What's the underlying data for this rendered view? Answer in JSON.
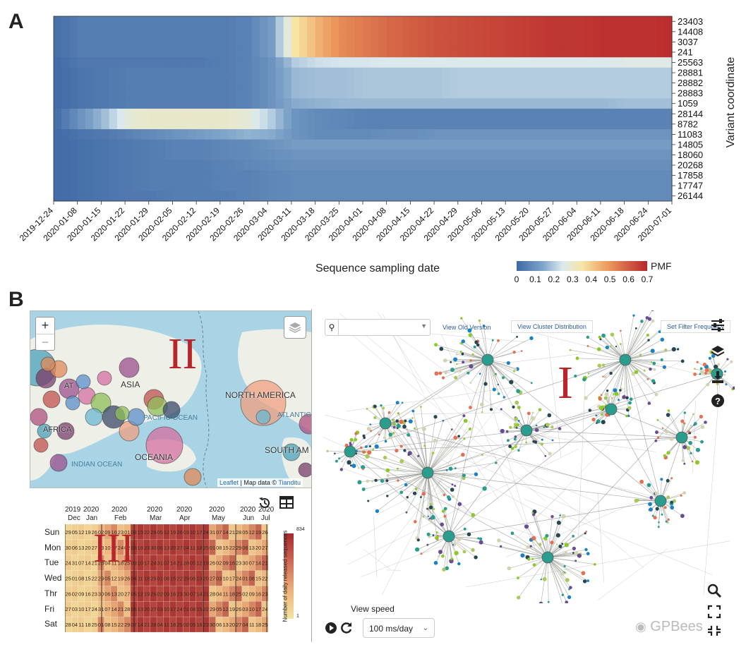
{
  "panel_a_label": "A",
  "panel_b_label": "B",
  "chart_data": {
    "type": "heatmap",
    "title": "",
    "xlabel": "Sequence sampling date",
    "ylabel": "Variant coordinate",
    "x_ticks": [
      "2019-12-24",
      "2020-01-08",
      "2020-01-15",
      "2020-01-22",
      "2020-01-29",
      "2020-02-05",
      "2020-02-12",
      "2020-02-19",
      "2020-02-26",
      "2020-03-04",
      "2020-03-11",
      "2020-03-18",
      "2020-03-25",
      "2020-04-01",
      "2020-04-08",
      "2020-04-15",
      "2020-04-22",
      "2020-04-29",
      "2020-05-06",
      "2020-05-13",
      "2020-05-20",
      "2020-05-27",
      "2020-06-04",
      "2020-06-11",
      "2020-06-18",
      "2020-06-24",
      "2020-07-01"
    ],
    "rows": [
      "23403",
      "14408",
      "3037",
      "241",
      "25563",
      "28881",
      "28882",
      "28883",
      "1059",
      "28144",
      "8782",
      "11083",
      "14805",
      "18060",
      "20268",
      "17858",
      "17747",
      "26144"
    ],
    "colorbar": {
      "label": "PMF",
      "range": [
        0,
        0.7
      ],
      "ticks": [
        "0",
        "0.1",
        "0.2",
        "0.3",
        "0.4",
        "0.5",
        "0.6",
        "0.7"
      ]
    },
    "approx_pmf_by_row_and_tick": [
      [
        0.02,
        0.05,
        0.05,
        0.05,
        0.05,
        0.05,
        0.05,
        0.05,
        0.06,
        0.12,
        0.35,
        0.45,
        0.52,
        0.55,
        0.58,
        0.6,
        0.62,
        0.63,
        0.64,
        0.65,
        0.66,
        0.67,
        0.67,
        0.68,
        0.68,
        0.68,
        0.69
      ],
      [
        0.02,
        0.05,
        0.05,
        0.05,
        0.05,
        0.05,
        0.05,
        0.05,
        0.06,
        0.12,
        0.35,
        0.45,
        0.52,
        0.55,
        0.58,
        0.6,
        0.62,
        0.63,
        0.64,
        0.65,
        0.66,
        0.67,
        0.67,
        0.68,
        0.68,
        0.68,
        0.69
      ],
      [
        0.02,
        0.05,
        0.05,
        0.05,
        0.05,
        0.05,
        0.05,
        0.05,
        0.06,
        0.12,
        0.35,
        0.45,
        0.52,
        0.55,
        0.58,
        0.6,
        0.62,
        0.63,
        0.64,
        0.65,
        0.66,
        0.67,
        0.67,
        0.68,
        0.68,
        0.68,
        0.69
      ],
      [
        0.02,
        0.05,
        0.05,
        0.05,
        0.05,
        0.05,
        0.05,
        0.05,
        0.06,
        0.12,
        0.35,
        0.45,
        0.52,
        0.55,
        0.58,
        0.6,
        0.62,
        0.63,
        0.64,
        0.65,
        0.66,
        0.67,
        0.67,
        0.68,
        0.68,
        0.68,
        0.69
      ],
      [
        0.01,
        0.04,
        0.04,
        0.04,
        0.04,
        0.04,
        0.04,
        0.05,
        0.06,
        0.1,
        0.2,
        0.23,
        0.24,
        0.24,
        0.25,
        0.25,
        0.25,
        0.25,
        0.25,
        0.25,
        0.25,
        0.25,
        0.25,
        0.25,
        0.26,
        0.26,
        0.26
      ],
      [
        0.01,
        0.03,
        0.04,
        0.05,
        0.05,
        0.05,
        0.05,
        0.05,
        0.06,
        0.1,
        0.17,
        0.18,
        0.18,
        0.19,
        0.19,
        0.19,
        0.19,
        0.2,
        0.2,
        0.2,
        0.2,
        0.2,
        0.2,
        0.2,
        0.2,
        0.2,
        0.2
      ],
      [
        0.01,
        0.03,
        0.04,
        0.05,
        0.05,
        0.05,
        0.05,
        0.05,
        0.06,
        0.1,
        0.17,
        0.18,
        0.18,
        0.19,
        0.19,
        0.19,
        0.19,
        0.2,
        0.2,
        0.2,
        0.2,
        0.2,
        0.2,
        0.2,
        0.2,
        0.2,
        0.2
      ],
      [
        0.01,
        0.03,
        0.04,
        0.05,
        0.05,
        0.05,
        0.05,
        0.05,
        0.06,
        0.1,
        0.17,
        0.18,
        0.18,
        0.19,
        0.19,
        0.19,
        0.19,
        0.2,
        0.2,
        0.2,
        0.2,
        0.2,
        0.2,
        0.2,
        0.2,
        0.2,
        0.2
      ],
      [
        0.01,
        0.03,
        0.04,
        0.05,
        0.05,
        0.05,
        0.05,
        0.05,
        0.06,
        0.1,
        0.15,
        0.16,
        0.17,
        0.17,
        0.17,
        0.17,
        0.17,
        0.17,
        0.17,
        0.17,
        0.17,
        0.17,
        0.17,
        0.17,
        0.18,
        0.18,
        0.18
      ],
      [
        0.02,
        0.1,
        0.18,
        0.28,
        0.3,
        0.3,
        0.3,
        0.3,
        0.28,
        0.2,
        0.1,
        0.08,
        0.07,
        0.06,
        0.06,
        0.06,
        0.06,
        0.06,
        0.06,
        0.06,
        0.06,
        0.06,
        0.06,
        0.06,
        0.06,
        0.06,
        0.06
      ],
      [
        0.02,
        0.1,
        0.18,
        0.28,
        0.3,
        0.3,
        0.3,
        0.3,
        0.28,
        0.2,
        0.1,
        0.08,
        0.07,
        0.06,
        0.06,
        0.06,
        0.06,
        0.06,
        0.06,
        0.06,
        0.06,
        0.06,
        0.06,
        0.06,
        0.06,
        0.06,
        0.06
      ],
      [
        0.01,
        0.03,
        0.04,
        0.06,
        0.08,
        0.1,
        0.12,
        0.14,
        0.16,
        0.15,
        0.1,
        0.08,
        0.08,
        0.08,
        0.09,
        0.09,
        0.1,
        0.1,
        0.1,
        0.1,
        0.1,
        0.1,
        0.1,
        0.1,
        0.1,
        0.1,
        0.1
      ],
      [
        0.01,
        0.02,
        0.03,
        0.04,
        0.05,
        0.06,
        0.06,
        0.07,
        0.08,
        0.1,
        0.12,
        0.12,
        0.12,
        0.12,
        0.12,
        0.12,
        0.12,
        0.12,
        0.12,
        0.12,
        0.12,
        0.12,
        0.12,
        0.12,
        0.12,
        0.12,
        0.12
      ],
      [
        0.01,
        0.02,
        0.03,
        0.04,
        0.05,
        0.06,
        0.06,
        0.07,
        0.08,
        0.09,
        0.1,
        0.1,
        0.1,
        0.1,
        0.1,
        0.1,
        0.1,
        0.1,
        0.1,
        0.1,
        0.1,
        0.1,
        0.1,
        0.1,
        0.1,
        0.1,
        0.1
      ],
      [
        0.01,
        0.02,
        0.03,
        0.04,
        0.05,
        0.05,
        0.05,
        0.06,
        0.07,
        0.08,
        0.09,
        0.09,
        0.09,
        0.09,
        0.09,
        0.09,
        0.09,
        0.09,
        0.09,
        0.09,
        0.09,
        0.09,
        0.09,
        0.09,
        0.09,
        0.09,
        0.09
      ],
      [
        0.01,
        0.02,
        0.03,
        0.04,
        0.05,
        0.05,
        0.05,
        0.06,
        0.06,
        0.07,
        0.08,
        0.08,
        0.08,
        0.08,
        0.08,
        0.08,
        0.08,
        0.08,
        0.08,
        0.08,
        0.08,
        0.08,
        0.08,
        0.08,
        0.08,
        0.08,
        0.08
      ],
      [
        0.01,
        0.02,
        0.03,
        0.04,
        0.05,
        0.05,
        0.05,
        0.06,
        0.06,
        0.07,
        0.08,
        0.08,
        0.08,
        0.08,
        0.08,
        0.08,
        0.08,
        0.08,
        0.08,
        0.08,
        0.08,
        0.08,
        0.08,
        0.08,
        0.08,
        0.08,
        0.08
      ],
      [
        0.01,
        0.02,
        0.03,
        0.04,
        0.04,
        0.05,
        0.05,
        0.05,
        0.06,
        0.07,
        0.08,
        0.08,
        0.08,
        0.08,
        0.08,
        0.08,
        0.08,
        0.08,
        0.08,
        0.08,
        0.08,
        0.08,
        0.08,
        0.08,
        0.08,
        0.08,
        0.08
      ]
    ]
  },
  "map": {
    "zoom_in": "+",
    "zoom_out": "−",
    "labels": [
      "ASIA",
      "NORTH AMERICA",
      "OCEANIA",
      "SOUTH AM",
      "PACIFIC OCEAN",
      "INDIAN OCEAN",
      "ATLANTIC",
      "AFRICA",
      "AT"
    ],
    "roman": "II",
    "attribution_leaflet": "Leaflet",
    "attribution_sep": " | Map data © ",
    "attribution_provider": "Tianditu"
  },
  "calendar": {
    "roman": "III",
    "day_labels": [
      "Sun",
      "Mon",
      "Tue",
      "Wed",
      "Thr",
      "Fri",
      "Sat"
    ],
    "year_labels": [
      "2019",
      "2020",
      "2020",
      "2020",
      "2020",
      "2020",
      "2020",
      "2020"
    ],
    "month_labels": [
      "Dec",
      "Jan",
      "Feb",
      "Mar",
      "Apr",
      "May",
      "Jun",
      "Jul"
    ],
    "legend_label": "Number of daily released sequences",
    "legend_max": "834",
    "legend_min": "1",
    "cell_values_by_day": [
      [
        "29",
        "05",
        "12",
        "19",
        "26",
        "02",
        "09",
        "16",
        "23",
        "01",
        "08",
        "15",
        "22",
        "29",
        "05",
        "12",
        "19",
        "26",
        "03",
        "10",
        "17",
        "24",
        "31",
        "07",
        "14",
        "21",
        "28",
        "05",
        "12",
        "19",
        "26"
      ],
      [
        "30",
        "06",
        "13",
        "20",
        "27",
        "03",
        "10",
        "17",
        "24",
        "02",
        "09",
        "16",
        "23",
        "30",
        "06",
        "13",
        "20",
        "27",
        "04",
        "11",
        "18",
        "25",
        "01",
        "08",
        "15",
        "22",
        "29",
        "06",
        "13",
        "20",
        "27"
      ],
      [
        "24",
        "31",
        "07",
        "14",
        "21",
        "28",
        "04",
        "11",
        "18",
        "25",
        "03",
        "10",
        "17",
        "24",
        "31",
        "07",
        "14",
        "21",
        "28",
        "05",
        "12",
        "19",
        "26",
        "02",
        "09",
        "16",
        "23",
        "30",
        "07",
        "14",
        "21"
      ],
      [
        "25",
        "01",
        "08",
        "15",
        "22",
        "29",
        "05",
        "12",
        "19",
        "26",
        "04",
        "11",
        "18",
        "25",
        "01",
        "08",
        "15",
        "22",
        "29",
        "06",
        "13",
        "20",
        "27",
        "03",
        "10",
        "17",
        "24",
        "01",
        "08",
        "15",
        "22"
      ],
      [
        "26",
        "02",
        "09",
        "16",
        "23",
        "30",
        "06",
        "13",
        "20",
        "27",
        "05",
        "12",
        "19",
        "26",
        "02",
        "09",
        "16",
        "23",
        "30",
        "07",
        "14",
        "21",
        "28",
        "04",
        "11",
        "18",
        "25",
        "02",
        "09",
        "16",
        "23"
      ],
      [
        "27",
        "03",
        "10",
        "17",
        "24",
        "31",
        "07",
        "14",
        "21",
        "28",
        "06",
        "13",
        "20",
        "27",
        "03",
        "10",
        "17",
        "24",
        "01",
        "08",
        "15",
        "22",
        "29",
        "05",
        "12",
        "19",
        "26",
        "03",
        "10",
        "17",
        "24"
      ],
      [
        "28",
        "04",
        "11",
        "18",
        "25",
        "01",
        "08",
        "15",
        "22",
        "29",
        "07",
        "14",
        "21",
        "28",
        "04",
        "11",
        "18",
        "25",
        "02",
        "09",
        "16",
        "23",
        "30",
        "06",
        "13",
        "20",
        "27",
        "04",
        "11",
        "18",
        "25"
      ]
    ]
  },
  "tree": {
    "search_placeholder": "",
    "view_old_version": "View Old Version",
    "view_cluster_distribution": "View Cluster Distribution",
    "set_filter_frequency": "Set Filter Frequency",
    "roman": "I",
    "view_speed_label": "View speed",
    "speed_value": "100 ms/day",
    "watermark": "GPBees"
  },
  "colors": {
    "brand_red": "#b8262b",
    "link_blue": "#2a5c9a"
  }
}
